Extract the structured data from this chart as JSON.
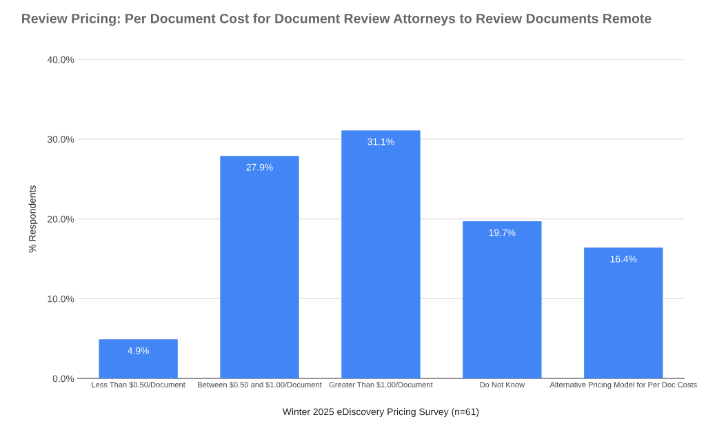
{
  "chart_data": {
    "type": "bar",
    "title": "Review Pricing: Per Document Cost for Document Review Attorneys to Review Documents Remote",
    "xlabel": "Winter 2025 eDiscovery Pricing Survey (n=61)",
    "ylabel": "% Respondents",
    "categories": [
      "Less Than $0.50/Document",
      "Between $0.50 and $1.00/Document",
      "Greater Than $1.00/Document",
      "Do Not Know",
      "Alternative Pricing Model for Per Doc Costs"
    ],
    "values": [
      4.9,
      27.9,
      31.1,
      19.7,
      16.4
    ],
    "value_labels": [
      "4.9%",
      "27.9%",
      "31.1%",
      "19.7%",
      "16.4%"
    ],
    "color": "#4285f4",
    "ylim": [
      0,
      40
    ],
    "yticks": [
      {
        "value": 0,
        "label": "0.0%"
      },
      {
        "value": 10,
        "label": "10.0%"
      },
      {
        "value": 20,
        "label": "20.0%"
      },
      {
        "value": 30,
        "label": "30.0%"
      },
      {
        "value": 40,
        "label": "40.0%"
      }
    ],
    "grid": "y"
  }
}
